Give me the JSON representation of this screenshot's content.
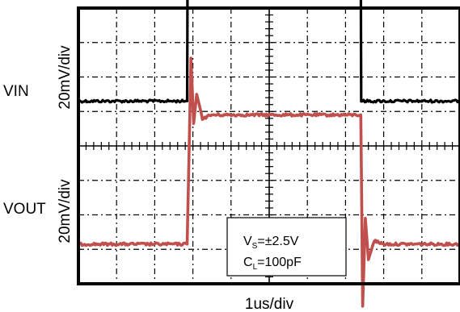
{
  "chart_data": {
    "type": "line",
    "title": "",
    "xlabel": "1us/div",
    "x_divisions": 10,
    "y_divisions": 8,
    "grid": true,
    "series": [
      {
        "name": "VIN",
        "ylabel": "20mV/div",
        "color": "#000000",
        "unit_y": "div",
        "x": [
          0.0,
          2.85,
          2.86,
          7.4,
          7.41,
          10.0
        ],
        "y": [
          1.3,
          1.3,
          5.4,
          5.4,
          1.3,
          1.3
        ]
      },
      {
        "name": "VOUT",
        "ylabel": "20mV/div",
        "color": "#c0504d",
        "unit_y": "div",
        "x": [
          0.0,
          2.85,
          2.95,
          3.02,
          3.1,
          3.25,
          3.5,
          7.4,
          7.45,
          7.52,
          7.6,
          7.75,
          8.0,
          10.0
        ],
        "y": [
          -2.85,
          -2.85,
          2.55,
          0.65,
          1.5,
          0.8,
          0.9,
          0.9,
          -4.65,
          -2.1,
          -3.3,
          -2.75,
          -2.85,
          -2.85
        ]
      }
    ],
    "annotation": {
      "vs_main": "V",
      "vs_sub": "S",
      "vs_value": "=±2.5V",
      "cl_main": "C",
      "cl_sub": "L",
      "cl_value": "=100pF"
    }
  }
}
